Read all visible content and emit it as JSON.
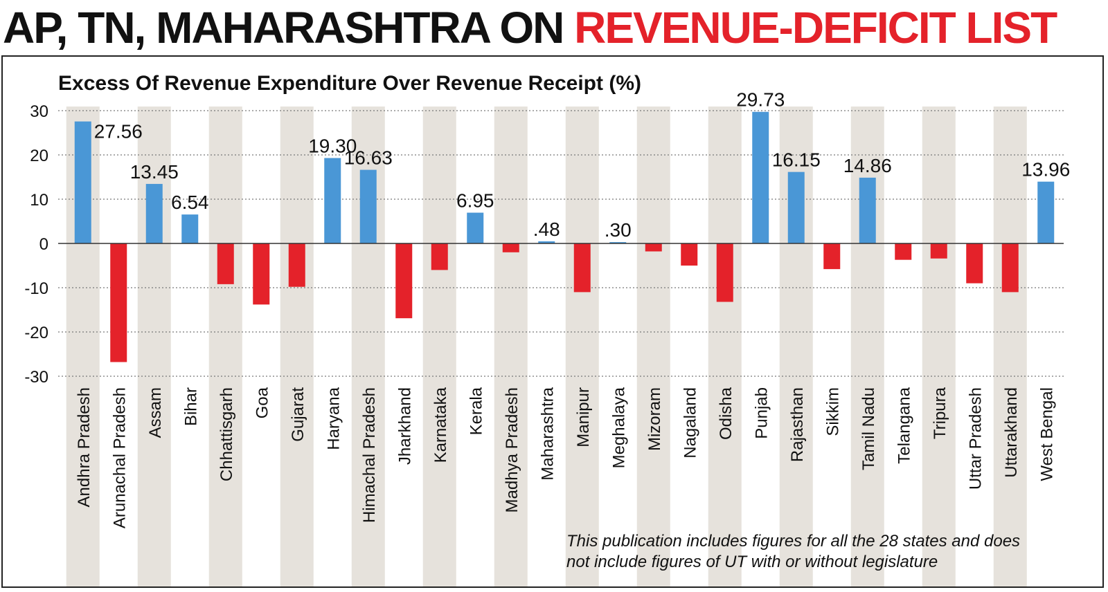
{
  "headline": {
    "black_part": "AP, TN, MAHARASHTRA ON ",
    "red_part": "REVENUE-DEFICIT LIST"
  },
  "colors": {
    "positive": "#4a97d6",
    "negative": "#e4222a",
    "band": "#e6e2dc",
    "title_red": "#e4222a"
  },
  "chart_data": {
    "type": "bar",
    "title": "Excess Of Revenue Expenditure Over Revenue Receipt (%)",
    "xlabel": "",
    "ylabel": "",
    "ylim": [
      -30,
      30
    ],
    "yticks": [
      30,
      20,
      10,
      0,
      -10,
      -20,
      -30
    ],
    "grid": true,
    "categories": [
      "Andhra Pradesh",
      "Arunachal Pradesh",
      "Assam",
      "Bihar",
      "Chhattisgarh",
      "Goa",
      "Gujarat",
      "Haryana",
      "Himachal Pradesh",
      "Jharkhand",
      "Karnataka",
      "Kerala",
      "Madhya Pradesh",
      "Maharashtra",
      "Manipur",
      "Meghalaya",
      "Mizoram",
      "Nagaland",
      "Odisha",
      "Punjab",
      "Rajasthan",
      "Sikkim",
      "Tamil Nadu",
      "Telangana",
      "Tripura",
      "Uttar Pradesh",
      "Uttarakhand",
      "West Bengal"
    ],
    "values": [
      27.56,
      -26.8,
      13.45,
      6.54,
      -9.2,
      -13.8,
      -9.8,
      19.3,
      16.63,
      -16.9,
      -6.0,
      6.95,
      -2.0,
      0.48,
      -11.0,
      0.3,
      -1.8,
      -5.0,
      -13.2,
      29.73,
      16.15,
      -5.8,
      14.86,
      -3.7,
      -3.4,
      -9.0,
      -11.0,
      13.96
    ],
    "data_labels": [
      "27.56",
      "",
      "13.45",
      "6.54",
      "",
      "",
      "",
      "19.30",
      "16.63",
      "",
      "",
      "6.95",
      "",
      ".48",
      "",
      ".30",
      "",
      "",
      "",
      "29.73",
      "16.15",
      "",
      "14.86",
      "",
      "",
      "",
      "",
      "13.96"
    ],
    "footnote_lines": [
      "This publication includes figures for all the 28 states and does",
      "not include figures of UT with or without legislature"
    ]
  }
}
